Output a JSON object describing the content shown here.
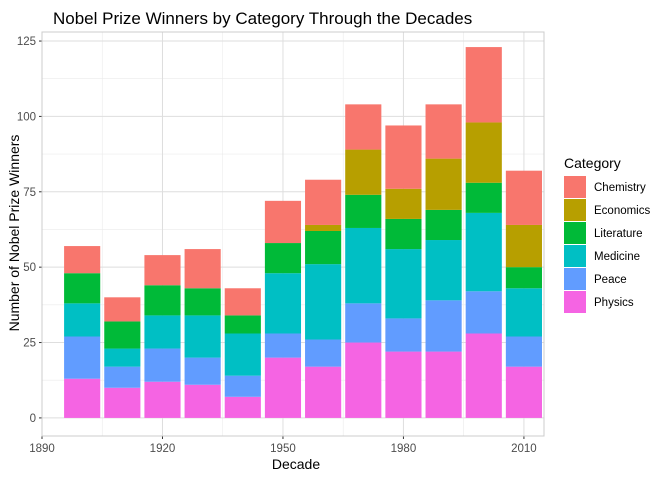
{
  "chart_data": {
    "type": "bar",
    "stacked": true,
    "title": "Nobel Prize Winners by Category Through the Decades",
    "xlabel": "Decade",
    "ylabel": "Number of Nobel Prize Winners",
    "x": [
      1900,
      1910,
      1920,
      1930,
      1940,
      1950,
      1960,
      1970,
      1980,
      1990,
      2000,
      2010
    ],
    "xlim": [
      1890,
      2015
    ],
    "xticks": [
      1890,
      1920,
      1950,
      1980,
      2010
    ],
    "ylim": [
      -6,
      128
    ],
    "yticks": [
      0,
      25,
      50,
      75,
      100,
      125
    ],
    "grid": true,
    "legend": {
      "title": "Category",
      "position": "right"
    },
    "series": [
      {
        "name": "Physics",
        "color": "#F564E3",
        "values": [
          13,
          10,
          12,
          11,
          7,
          20,
          17,
          25,
          22,
          22,
          28,
          17
        ]
      },
      {
        "name": "Peace",
        "color": "#619CFF",
        "values": [
          14,
          7,
          11,
          9,
          7,
          8,
          9,
          13,
          11,
          17,
          14,
          10
        ]
      },
      {
        "name": "Medicine",
        "color": "#00BFC4",
        "values": [
          11,
          6,
          11,
          14,
          14,
          20,
          25,
          25,
          23,
          20,
          26,
          16
        ]
      },
      {
        "name": "Literature",
        "color": "#00BA38",
        "values": [
          10,
          9,
          10,
          9,
          6,
          10,
          11,
          11,
          10,
          10,
          10,
          7
        ]
      },
      {
        "name": "Economics",
        "color": "#B79F00",
        "values": [
          0,
          0,
          0,
          0,
          0,
          0,
          2,
          15,
          10,
          17,
          20,
          14
        ]
      },
      {
        "name": "Chemistry",
        "color": "#F8766D",
        "values": [
          9,
          8,
          10,
          13,
          9,
          14,
          15,
          15,
          21,
          18,
          25,
          18
        ]
      }
    ],
    "legend_order": [
      "Chemistry",
      "Economics",
      "Literature",
      "Medicine",
      "Peace",
      "Physics"
    ]
  }
}
